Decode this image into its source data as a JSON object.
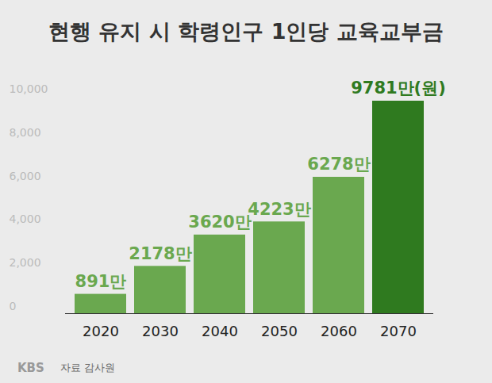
{
  "chart_data": {
    "type": "bar",
    "title": "현행 유지 시 학령인구 1인당 교육교부금",
    "categories": [
      "2020",
      "2030",
      "2040",
      "2050",
      "2060",
      "2070"
    ],
    "values": [
      891,
      2178,
      3620,
      4223,
      6278,
      9781
    ],
    "value_labels": [
      "891만",
      "2178만",
      "3620만",
      "4223만",
      "6278만",
      "9781만(원)"
    ],
    "colors": [
      "#6aa84f",
      "#6aa84f",
      "#6aa84f",
      "#6aa84f",
      "#6aa84f",
      "#2f7a1f"
    ],
    "ylim": [
      0,
      10000
    ],
    "yticks": [
      0,
      2000,
      4000,
      6000,
      8000,
      10000
    ],
    "grid": false,
    "data_labels": true,
    "source": "자료 감사원",
    "logo": "KBS"
  }
}
